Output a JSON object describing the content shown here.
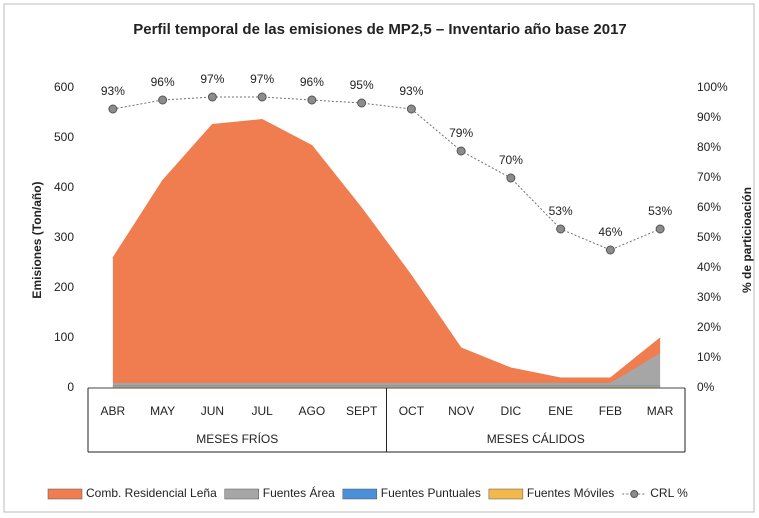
{
  "chart_data": {
    "type": "stacked_area",
    "title": "Perfil temporal de las emisiones de MP2,5 – Inventario año base 2017",
    "y_label": "Emisiones (Ton/año)",
    "y2_label": "% de particioación",
    "categories": [
      "ABR",
      "MAY",
      "JUN",
      "JUL",
      "AGO",
      "SEPT",
      "OCT",
      "NOV",
      "DIC",
      "ENE",
      "FEB",
      "MAR"
    ],
    "groups": [
      {
        "label": "MESES FRÍOS",
        "span": 6
      },
      {
        "label": "MESES CÁLIDOS",
        "span": 6
      }
    ],
    "series": [
      {
        "name": "Comb. Residencial Leña",
        "color": "#ef7d4f",
        "values": [
          250,
          405,
          517,
          527,
          475,
          350,
          215,
          70,
          30,
          10,
          10,
          30
        ]
      },
      {
        "name": "Fuentes Área",
        "color": "#a6a6a6",
        "values": [
          5,
          5,
          5,
          5,
          5,
          5,
          5,
          5,
          5,
          5,
          5,
          65
        ]
      },
      {
        "name": "Fuentes Puntuales",
        "color": "#4a90d9",
        "values": [
          2,
          2,
          2,
          2,
          2,
          2,
          2,
          2,
          2,
          2,
          2,
          2
        ]
      },
      {
        "name": "Fuentes Móviles",
        "color": "#f2b84b",
        "values": [
          3,
          3,
          3,
          3,
          3,
          3,
          3,
          3,
          3,
          3,
          3,
          3
        ]
      },
      {
        "name": "CRL %",
        "color": "#707070",
        "axis": "y2",
        "line": true,
        "values": [
          93,
          96,
          97,
          97,
          96,
          95,
          93,
          79,
          70,
          53,
          46,
          53
        ],
        "value_labels": [
          "93%",
          "96%",
          "97%",
          "97%",
          "96%",
          "95%",
          "93%",
          "79%",
          "70%",
          "53%",
          "46%",
          "53%"
        ]
      }
    ],
    "ylim": [
      0,
      600
    ],
    "yticks": [
      0,
      100,
      200,
      300,
      400,
      500,
      600
    ],
    "y2lim": [
      0,
      100
    ],
    "y2ticks": [
      {
        "value": 0,
        "label": "0%"
      },
      {
        "value": 10,
        "label": "10%"
      },
      {
        "value": 20,
        "label": "20%"
      },
      {
        "value": 30,
        "label": "30%"
      },
      {
        "value": 40,
        "label": "40%"
      },
      {
        "value": 50,
        "label": "50%"
      },
      {
        "value": 60,
        "label": "60%"
      },
      {
        "value": 70,
        "label": "70%"
      },
      {
        "value": 80,
        "label": "80%"
      },
      {
        "value": 90,
        "label": "90%"
      },
      {
        "value": 100,
        "label": "100%"
      }
    ],
    "legend": "bottom"
  }
}
